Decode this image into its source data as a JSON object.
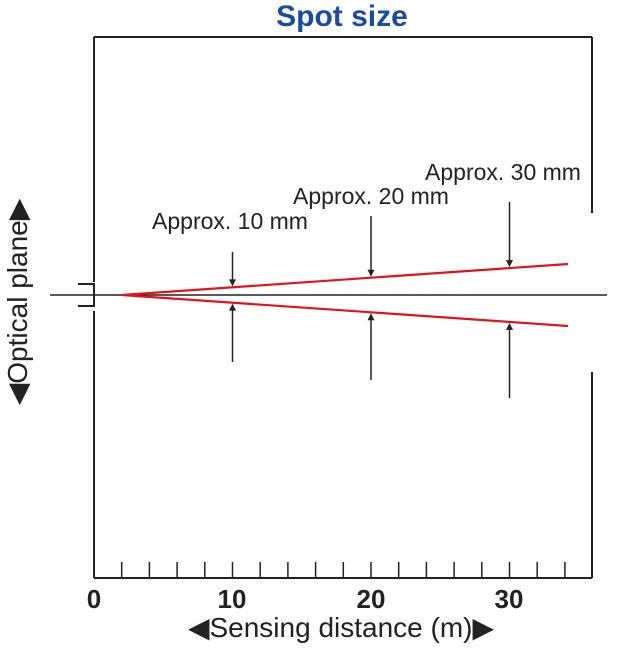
{
  "title": "Spot size",
  "y_axis_label": "◀Optical plane▶",
  "x_axis_label": "◀Sensing distance (m)▶",
  "x_ticks": [
    {
      "value": 0,
      "label": "0"
    },
    {
      "value": 10,
      "label": "10"
    },
    {
      "value": 20,
      "label": "20"
    },
    {
      "value": 30,
      "label": "30"
    }
  ],
  "spots": [
    {
      "distance_m": 10,
      "label": "Approx. 10 mm",
      "size_mm": 10
    },
    {
      "distance_m": 20,
      "label": "Approx. 20 mm",
      "size_mm": 20
    },
    {
      "distance_m": 30,
      "label": "Approx. 30 mm",
      "size_mm": 30
    }
  ],
  "colors": {
    "title": "#1a4b9c",
    "beam": "#e0141e",
    "lines": "#222222"
  }
}
